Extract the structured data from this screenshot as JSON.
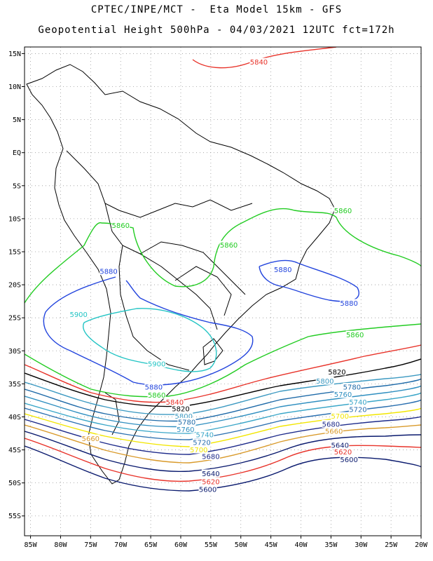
{
  "header": {
    "line1": "CPTEC/INPE/MCT -  Eta Model 15km - GFS",
    "line2": "Geopotential Height 500hPa - 04/03/2021 12UTC fct=172h"
  },
  "colors": {
    "c5600": "#0a1a6e",
    "c5620": "#e8332a",
    "c5640": "#0a1a6e",
    "c5660": "#d99a2b",
    "c5680": "#1d2a8a",
    "c5700": "#f2e600",
    "c5720": "#2a6fb0",
    "c5740": "#3aa6c8",
    "c5760": "#2f8fc0",
    "c5780": "#1e6aa8",
    "c5800": "#3d9ac2",
    "c5820": "#000000",
    "c5840": "#e8332a",
    "c5860": "#22cc22",
    "c5880": "#2244dd",
    "c5900": "#22c4c4"
  },
  "chart_data": {
    "type": "contour-map",
    "title": "Geopotential Height 500hPa - 04/03/2021 12UTC fct=172h",
    "x_ticks": [
      "85W",
      "80W",
      "75W",
      "70W",
      "65W",
      "60W",
      "55W",
      "50W",
      "45W",
      "40W",
      "35W",
      "30W",
      "25W",
      "20W"
    ],
    "y_ticks": [
      "15N",
      "10N",
      "5N",
      "EQ",
      "5S",
      "10S",
      "15S",
      "20S",
      "25S",
      "30S",
      "35S",
      "40S",
      "45S",
      "50S",
      "55S"
    ],
    "xlim": [
      -86,
      -20
    ],
    "ylim": [
      -58,
      16
    ],
    "grid": true,
    "contour_labels": [
      {
        "text": "5840",
        "lon": -47,
        "lat": 13.7,
        "color": "c5840"
      },
      {
        "text": "5860",
        "lon": -70,
        "lat": -11,
        "color": "c5860"
      },
      {
        "text": "5860",
        "lon": -52,
        "lat": -14,
        "color": "c5860"
      },
      {
        "text": "5860",
        "lon": -33,
        "lat": -8.8,
        "color": "c5860"
      },
      {
        "text": "5880",
        "lon": -72,
        "lat": -18,
        "color": "c5880"
      },
      {
        "text": "5880",
        "lon": -43,
        "lat": -17.7,
        "color": "c5880"
      },
      {
        "text": "5880",
        "lon": -32,
        "lat": -22.8,
        "color": "c5880"
      },
      {
        "text": "5900",
        "lon": -77,
        "lat": -24.5,
        "color": "c5900"
      },
      {
        "text": "5900",
        "lon": -64,
        "lat": -32,
        "color": "c5900"
      },
      {
        "text": "5880",
        "lon": -64.5,
        "lat": -35.5,
        "color": "c5880"
      },
      {
        "text": "5860",
        "lon": -64,
        "lat": -36.7,
        "color": "c5860"
      },
      {
        "text": "5860",
        "lon": -31,
        "lat": -27.6,
        "color": "c5860"
      },
      {
        "text": "5840",
        "lon": -61,
        "lat": -37.8,
        "color": "c5840"
      },
      {
        "text": "5820",
        "lon": -60,
        "lat": -38.8,
        "color": "c5820"
      },
      {
        "text": "5820",
        "lon": -34,
        "lat": -33.2,
        "color": "c5820"
      },
      {
        "text": "5800",
        "lon": -59.5,
        "lat": -39.9,
        "color": "c5800"
      },
      {
        "text": "5800",
        "lon": -36,
        "lat": -34.6,
        "color": "c5800"
      },
      {
        "text": "5780",
        "lon": -59,
        "lat": -40.8,
        "color": "c5780"
      },
      {
        "text": "5780",
        "lon": -31.5,
        "lat": -35.5,
        "color": "c5780"
      },
      {
        "text": "5760",
        "lon": -59.2,
        "lat": -41.9,
        "color": "c5760"
      },
      {
        "text": "5760",
        "lon": -33,
        "lat": -36.6,
        "color": "c5760"
      },
      {
        "text": "5740",
        "lon": -56,
        "lat": -42.7,
        "color": "c5740"
      },
      {
        "text": "5740",
        "lon": -30.5,
        "lat": -37.8,
        "color": "c5740"
      },
      {
        "text": "5720",
        "lon": -56.5,
        "lat": -43.9,
        "color": "c5720"
      },
      {
        "text": "5720",
        "lon": -30.5,
        "lat": -38.9,
        "color": "c5720"
      },
      {
        "text": "5700",
        "lon": -57,
        "lat": -45,
        "color": "c5700"
      },
      {
        "text": "5700",
        "lon": -33.5,
        "lat": -39.9,
        "color": "c5700"
      },
      {
        "text": "5680",
        "lon": -55,
        "lat": -46,
        "color": "c5680"
      },
      {
        "text": "5680",
        "lon": -35,
        "lat": -41.1,
        "color": "c5680"
      },
      {
        "text": "5660",
        "lon": -34.5,
        "lat": -42.2,
        "color": "c5660"
      },
      {
        "text": "5660",
        "lon": -75,
        "lat": -43.3,
        "color": "c5660"
      },
      {
        "text": "5640",
        "lon": -55,
        "lat": -48.6,
        "color": "c5640"
      },
      {
        "text": "5640",
        "lon": -33.5,
        "lat": -44.3,
        "color": "c5640"
      },
      {
        "text": "5620",
        "lon": -55,
        "lat": -49.8,
        "color": "c5620"
      },
      {
        "text": "5620",
        "lon": -33,
        "lat": -45.3,
        "color": "c5620"
      },
      {
        "text": "5600",
        "lon": -55.5,
        "lat": -51,
        "color": "c5600"
      },
      {
        "text": "5600",
        "lon": -32,
        "lat": -46.5,
        "color": "c5600"
      }
    ]
  }
}
